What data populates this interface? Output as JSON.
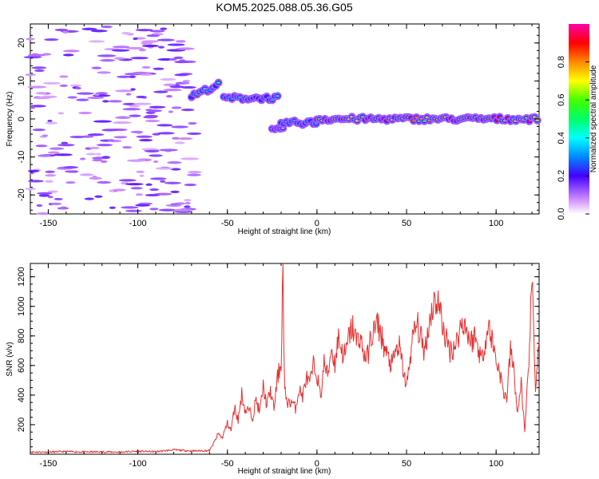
{
  "title": "KOM5.2025.088.05.36.G05",
  "chart_data": [
    {
      "type": "heatmap",
      "xlabel": "Height of straight line (km)",
      "ylabel": "Frequency (Hz)",
      "xlim": [
        -160,
        124
      ],
      "ylim": [
        -25,
        25
      ],
      "x_ticks": [
        -150,
        -100,
        -50,
        0,
        50,
        100
      ],
      "y_ticks": [
        -20,
        -10,
        0,
        10,
        20
      ],
      "x_tick_labels": [
        "-150",
        "-100",
        "-50",
        "0",
        "50",
        "100"
      ],
      "y_tick_labels": [
        "-20",
        "-10",
        "0",
        "10",
        "20"
      ],
      "colorbar": {
        "label": "Normalized spectral amplitude",
        "range": [
          0,
          1
        ],
        "ticks": [
          0.0,
          0.2,
          0.4,
          0.6,
          0.8
        ],
        "tick_labels": [
          "0.0",
          "0.2",
          "0.4",
          "0.6",
          "0.8"
        ]
      },
      "features": [
        {
          "x_range": [
            -160,
            -68
          ],
          "freq_range": [
            -25,
            25
          ],
          "amplitude": 0.1
        },
        {
          "x_range": [
            -70,
            -55
          ],
          "freq_start": 6,
          "freq_end": 9,
          "amplitude": 0.45
        },
        {
          "x_range": [
            -52,
            -22
          ],
          "freq": 5.5,
          "amplitude": 0.35
        },
        {
          "x_range": [
            -25,
            -18
          ],
          "freq": -3,
          "amplitude": 0.1
        },
        {
          "x_range": [
            -20,
            0
          ],
          "freq": -1,
          "amplitude": 0.4
        },
        {
          "x_range": [
            0,
            124
          ],
          "freq": 0,
          "amplitude": 0.9
        }
      ]
    },
    {
      "type": "line",
      "xlabel": "Height of straight line (km)",
      "ylabel": "SNR (v/v)",
      "xlim": [
        -160,
        124
      ],
      "ylim": [
        0,
        1290
      ],
      "x_ticks": [
        -150,
        -100,
        -50,
        0,
        50,
        100
      ],
      "y_ticks": [
        200,
        400,
        600,
        800,
        1000,
        1200
      ],
      "x_tick_labels": [
        "-150",
        "-100",
        "-50",
        "0",
        "50",
        "100"
      ],
      "y_tick_labels": [
        "200",
        "400",
        "600",
        "800",
        "1000",
        "1200"
      ],
      "series": [
        {
          "x": [
            -160,
            -150,
            -140,
            -130,
            -120,
            -110,
            -100,
            -90,
            -80,
            -70,
            -60,
            -57,
            -55,
            -53,
            -50,
            -48,
            -46,
            -44,
            -42,
            -40,
            -38,
            -36,
            -34,
            -32,
            -30,
            -28,
            -26,
            -24,
            -22,
            -20,
            -19,
            -18.5,
            -18,
            -17,
            -16,
            -14,
            -12,
            -10,
            -8,
            -6,
            -4,
            -2,
            0,
            2,
            4,
            6,
            8,
            10,
            12,
            14,
            16,
            18,
            20,
            22,
            24,
            26,
            28,
            30,
            32,
            34,
            36,
            38,
            40,
            42,
            44,
            46,
            48,
            50,
            52,
            54,
            56,
            58,
            60,
            62,
            64,
            66,
            68,
            70,
            72,
            74,
            76,
            78,
            80,
            82,
            84,
            86,
            88,
            90,
            92,
            94,
            96,
            98,
            100,
            102,
            104,
            106,
            108,
            110,
            112,
            114,
            116,
            118,
            120,
            122,
            124
          ],
          "y": [
            15,
            15,
            18,
            15,
            16,
            15,
            20,
            18,
            30,
            22,
            25,
            90,
            140,
            110,
            210,
            160,
            320,
            230,
            410,
            290,
            300,
            250,
            370,
            280,
            460,
            330,
            430,
            310,
            520,
            620,
            1290,
            700,
            420,
            380,
            340,
            360,
            310,
            440,
            390,
            520,
            470,
            600,
            540,
            380,
            620,
            530,
            720,
            610,
            800,
            690,
            670,
            810,
            860,
            760,
            800,
            680,
            650,
            780,
            840,
            880,
            800,
            700,
            640,
            600,
            700,
            720,
            580,
            450,
            660,
            820,
            880,
            780,
            700,
            840,
            980,
            1040,
            1020,
            880,
            780,
            700,
            720,
            760,
            860,
            900,
            820,
            760,
            800,
            720,
            640,
            780,
            860,
            760,
            640,
            560,
            420,
            380,
            700,
            560,
            260,
            500,
            140,
            560,
            1160,
            460,
            760
          ]
        }
      ]
    }
  ]
}
